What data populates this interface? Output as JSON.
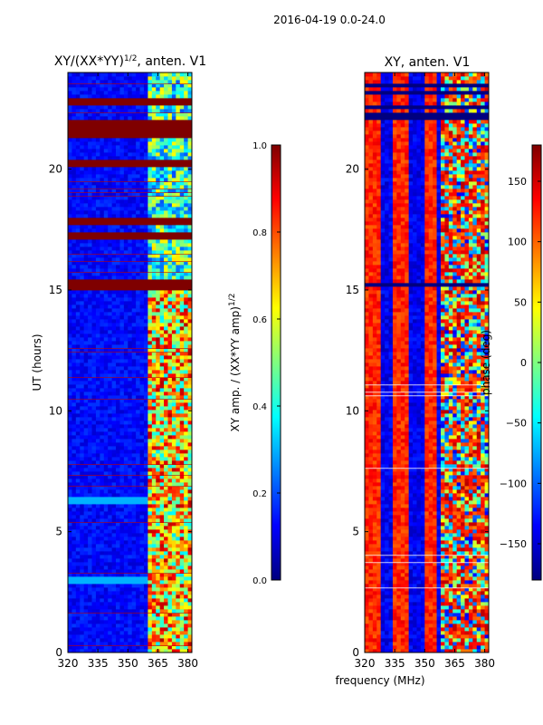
{
  "figure": {
    "suptitle": "2016-04-19 0.0-24.0",
    "xlabel_shared": "frequency (MHz)"
  },
  "chart_data": [
    {
      "type": "heatmap",
      "title_prefix": "XY/(XX*YY)",
      "title_exp": "1/2",
      "title_suffix": ", anten. V1",
      "xlabel": "",
      "ylabel": "UT (hours)",
      "xlim": [
        320,
        382
      ],
      "ylim": [
        0,
        24
      ],
      "xticks": [
        320,
        335,
        350,
        365,
        380
      ],
      "yticks": [
        0,
        5,
        10,
        15,
        20
      ],
      "colormap": "jet",
      "colorbar": {
        "label_prefix": "XY amp. / (XX*YY amp)",
        "label_exp": "1/2",
        "range": [
          0.0,
          1.0
        ],
        "ticks": [
          0.0,
          0.2,
          0.4,
          0.6,
          0.8,
          1.0
        ],
        "tick_labels": [
          "0.0",
          "0.2",
          "0.4",
          "0.6",
          "0.8",
          "1.0"
        ]
      },
      "flagged_bands_hours": [
        [
          22.6,
          22.9
        ],
        [
          21.3,
          22.1
        ],
        [
          20.1,
          20.4
        ],
        [
          17.7,
          18.0
        ],
        [
          17.1,
          17.4
        ],
        [
          15.0,
          15.5
        ]
      ],
      "bright_channel_band_mhz": [
        360,
        382
      ],
      "description_value_level": "mostly low (~0.1) below 360 MHz; high (0.5-1.0) in 360-382 MHz band"
    },
    {
      "type": "heatmap",
      "title": "XY, anten. V1",
      "xlabel": "",
      "ylabel": "phase (deg)",
      "xlim": [
        320,
        382
      ],
      "ylim": [
        0,
        24
      ],
      "xticks": [
        320,
        335,
        350,
        365,
        380
      ],
      "yticks": [
        0,
        5,
        10,
        15,
        20
      ],
      "colormap": "jet",
      "colorbar": {
        "range": [
          -180,
          180
        ],
        "ticks": [
          150,
          100,
          50,
          0,
          -50,
          -100,
          -150
        ],
        "tick_labels": [
          "150",
          "100",
          "50",
          "0",
          "−50",
          "−100",
          "−150"
        ]
      },
      "flagged_bands_hours": [
        [
          23.0,
          24.0
        ],
        [
          22.0,
          22.9
        ],
        [
          19.0,
          19.2
        ],
        [
          15.0,
          15.5
        ]
      ]
    }
  ],
  "colors": {
    "cmap_jet": [
      "#00007f",
      "#0000ff",
      "#007fff",
      "#00ffff",
      "#7fff7f",
      "#ffff00",
      "#ff7f00",
      "#ff0000",
      "#7f0000"
    ],
    "flag_red": "#7f0000"
  }
}
